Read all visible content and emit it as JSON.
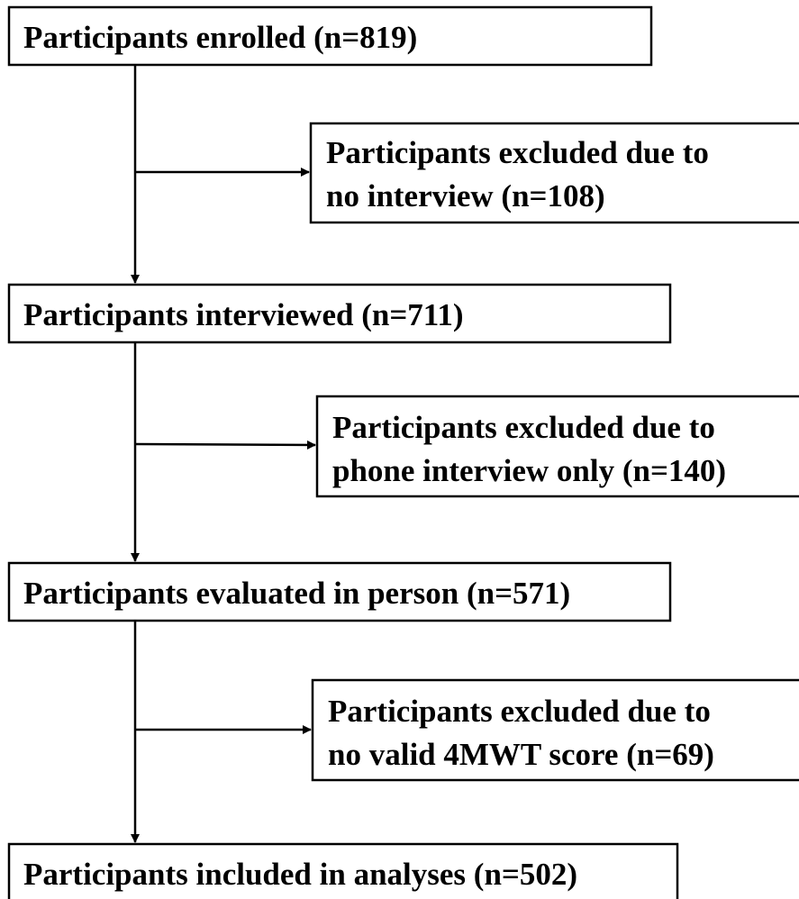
{
  "nodes": [
    {
      "lines": [
        "Participants enrolled (n=819)"
      ]
    },
    {
      "lines": [
        "Participants excluded due to",
        "no interview (n=108)"
      ]
    },
    {
      "lines": [
        "Participants interviewed (n=711)"
      ]
    },
    {
      "lines": [
        "Participants excluded due to",
        "phone interview only (n=140)"
      ]
    },
    {
      "lines": [
        "Participants evaluated in person (n=571)"
      ]
    },
    {
      "lines": [
        "Participants excluded due to",
        "no valid 4MWT score (n=69)"
      ]
    },
    {
      "lines": [
        "Participants included in analyses (n=502)"
      ]
    }
  ]
}
